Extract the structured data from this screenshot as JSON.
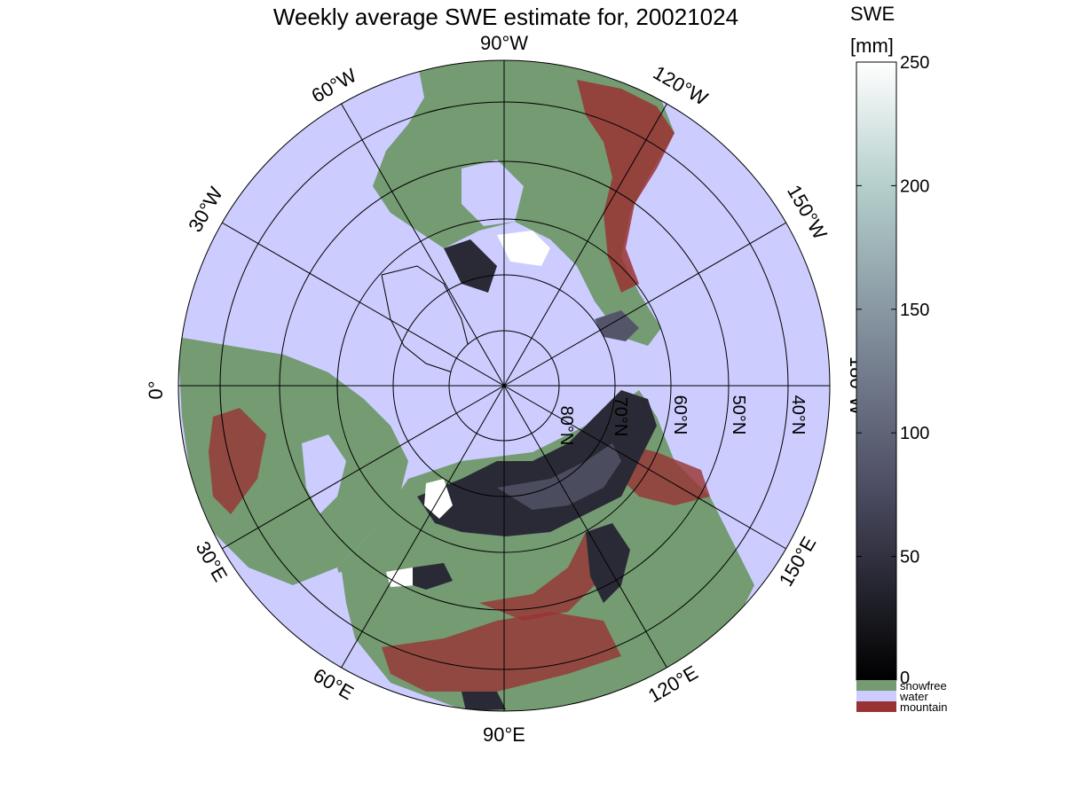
{
  "title": "Weekly average SWE estimate for, 20021024",
  "colorbar": {
    "variable": "SWE",
    "unit": "[mm]",
    "ticks": [
      0,
      50,
      100,
      150,
      200,
      250
    ],
    "tick_labels": [
      "0",
      "50",
      "100",
      "150",
      "200",
      "250"
    ],
    "range": [
      0,
      250
    ],
    "gradient_colors": [
      "#000000",
      "#4a4a60",
      "#7e8a98",
      "#b4cfcc",
      "#ffffff"
    ],
    "categories": [
      {
        "label": "snowfree",
        "color": "#749B72"
      },
      {
        "label": "water",
        "color": "#CCCCFF"
      },
      {
        "label": "mountain",
        "color": "#993333"
      }
    ]
  },
  "map": {
    "projection": "polar-stereographic",
    "pole": "North",
    "longitude_labels": {
      "top": "90°W",
      "upper_left": "60°W",
      "upper_right": "120°W",
      "left_upper": "30°W",
      "right_upper": "150°W",
      "left": "0°",
      "right": "180°W",
      "lower_left": "30°E",
      "lower_right": "150°E",
      "bottom_left": "60°E",
      "bottom_right": "120°E",
      "bottom": "90°E"
    },
    "latitude_labels": [
      "80°N",
      "70°N",
      "60°N",
      "50°N",
      "40°N"
    ],
    "colors": {
      "water": "#CCCCFF",
      "land": "#749B72",
      "mountain": "#993333",
      "snow_deep": "#2a2a36",
      "snow_medium": "#55556a",
      "snow_white": "#ffffff",
      "coast": "#000000"
    }
  }
}
